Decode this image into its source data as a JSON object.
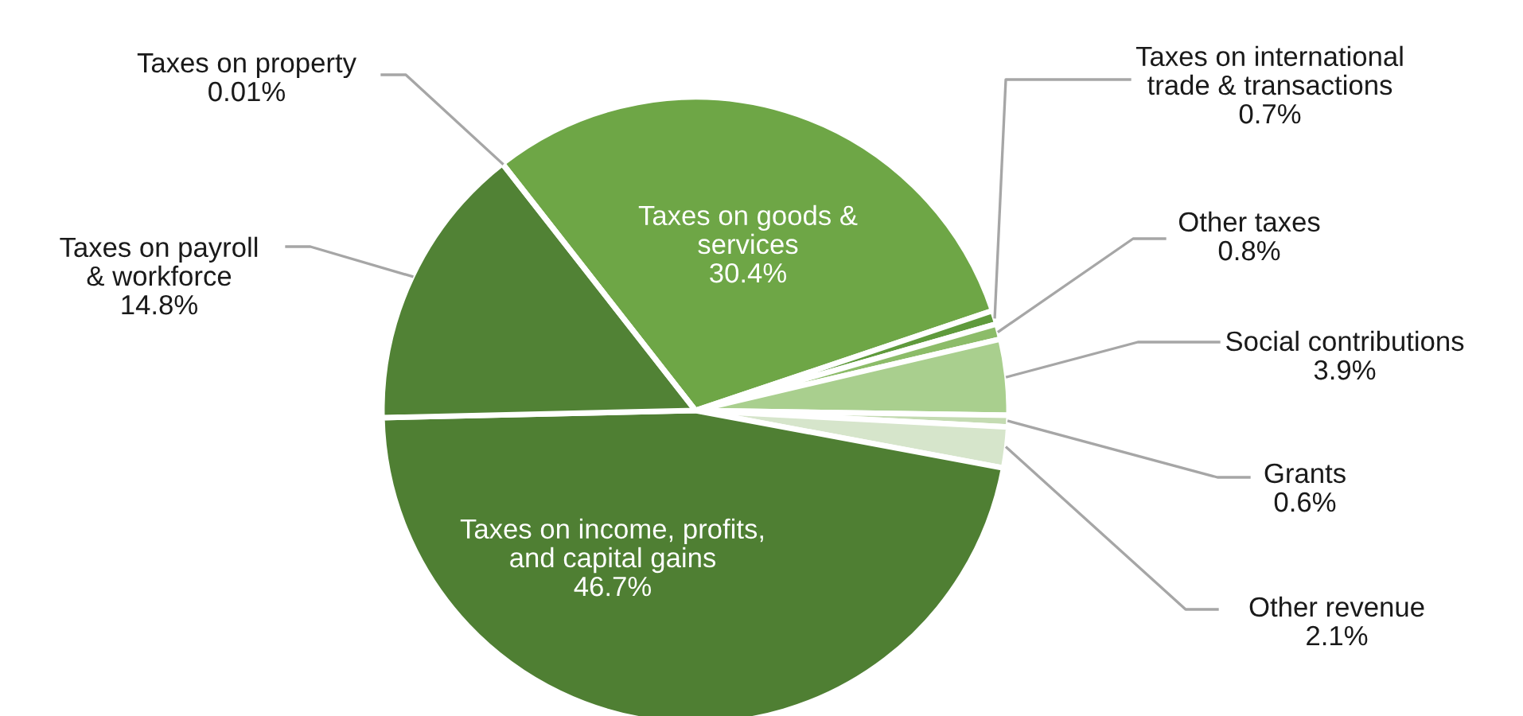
{
  "chart_data": {
    "type": "pie",
    "categories": [
      "Taxes on goods &\nservices",
      "Taxes on international\ntrade & transactions",
      "Other taxes",
      "Social contributions",
      "Grants",
      "Other revenue",
      "Taxes on income, profits,\nand capital gains",
      "Taxes on payroll\n& workforce",
      "Taxes on property"
    ],
    "values": [
      30.4,
      0.7,
      0.8,
      3.9,
      0.6,
      2.1,
      46.7,
      14.8,
      0.01
    ],
    "value_labels": [
      "30.4%",
      "0.7%",
      "0.8%",
      "3.9%",
      "0.6%",
      "2.1%",
      "46.7%",
      "14.8%",
      "0.01%"
    ],
    "colors": [
      "#6ea646",
      "#5f9a3c",
      "#8cbc69",
      "#a9cf8e",
      "#c4dbb2",
      "#d6e5cb",
      "#4f7f33",
      "#518235",
      "#6aa84f"
    ]
  }
}
